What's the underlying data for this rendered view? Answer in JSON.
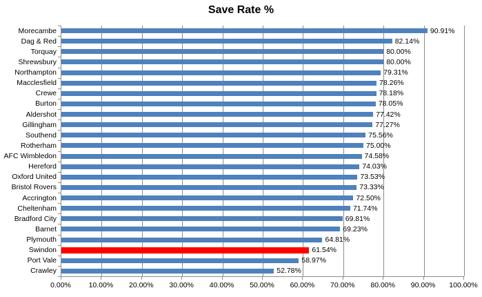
{
  "title": "Save Rate %",
  "colors": {
    "bar": "#4f81bd",
    "highlight_bar": "#ff0000",
    "gridline": "#8c8c8c",
    "text": "#000000"
  },
  "chart_data": {
    "type": "bar",
    "orientation": "horizontal",
    "title": "Save Rate %",
    "categories": [
      "Morecambe",
      "Dag & Red",
      "Torquay",
      "Shrewsbury",
      "Northampton",
      "Macclesfield",
      "Crewe",
      "Burton",
      "Aldershot",
      "Gillingham",
      "Southend",
      "Rotherham",
      "AFC Wimbledon",
      "Hereford",
      "Oxford United",
      "Bristol Rovers",
      "Accrington",
      "Cheltenham",
      "Bradford City",
      "Barnet",
      "Plymouth",
      "Swindon",
      "Port Vale",
      "Crawley"
    ],
    "values": [
      90.91,
      82.14,
      80.0,
      80.0,
      79.31,
      78.26,
      78.18,
      78.05,
      77.42,
      77.27,
      75.56,
      75.0,
      74.58,
      74.03,
      73.53,
      73.33,
      72.5,
      71.74,
      69.81,
      69.23,
      64.81,
      61.54,
      58.97,
      52.78
    ],
    "value_labels": [
      "90.91%",
      "82.14%",
      "80.00%",
      "80.00%",
      "79.31%",
      "78.26%",
      "78.18%",
      "78.05%",
      "77.42%",
      "77.27%",
      "75.56%",
      "75.00%",
      "74.58%",
      "74.03%",
      "73.53%",
      "73.33%",
      "72.50%",
      "71.74%",
      "69.81%",
      "69.23%",
      "64.81%",
      "61.54%",
      "58.97%",
      "52.78%"
    ],
    "highlight_category": "Swindon",
    "highlight_index": 21,
    "xlabel": "",
    "ylabel": "",
    "xlim": [
      0,
      100
    ],
    "x_tick_labels": [
      "0.00%",
      "10.00%",
      "20.00%",
      "30.00%",
      "40.00%",
      "50.00%",
      "60.00%",
      "70.00%",
      "80.00%",
      "90.00%",
      "100.00%"
    ],
    "x_tick_values": [
      0,
      10,
      20,
      30,
      40,
      50,
      60,
      70,
      80,
      90,
      100
    ],
    "grid": true,
    "legend": "none"
  }
}
